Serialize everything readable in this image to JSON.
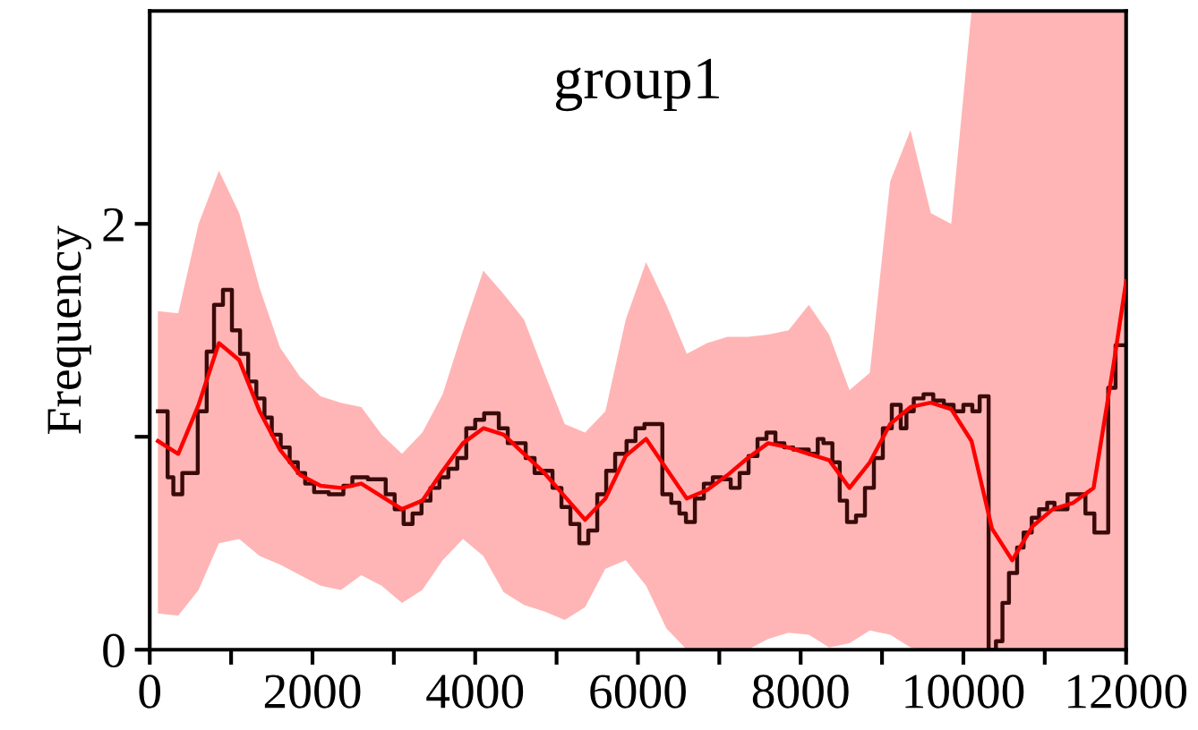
{
  "chart_data": {
    "type": "line",
    "title": "group1",
    "ylabel": "Frequency",
    "xlim": [
      0,
      12000
    ],
    "ylim": [
      0,
      3
    ],
    "xticks": [
      0,
      {
        "value": 1000,
        "label": null
      },
      2000,
      {
        "value": 3000,
        "label": null
      },
      4000,
      {
        "value": 5000,
        "label": null
      },
      6000,
      {
        "value": 7000,
        "label": null
      },
      8000,
      {
        "value": 9000,
        "label": null
      },
      10000,
      {
        "value": 11000,
        "label": null
      },
      12000
    ],
    "yticks": [
      0,
      {
        "value": 1,
        "label": null
      },
      2
    ],
    "grid": false,
    "legend": false,
    "series": [
      {
        "color": "#ff0000",
        "x": [
          100,
          350,
          600,
          850,
          1100,
          1350,
          1600,
          1850,
          2100,
          2350,
          2600,
          2850,
          3100,
          3350,
          3600,
          3850,
          4100,
          4350,
          4600,
          4850,
          5100,
          5350,
          5600,
          5850,
          6100,
          6350,
          6600,
          6850,
          7100,
          7350,
          7600,
          7850,
          8100,
          8350,
          8600,
          8850,
          9100,
          9350,
          9600,
          9850,
          10100,
          10350,
          10600,
          10850,
          11100,
          11350,
          11600,
          11850,
          12000
        ],
        "values": [
          0.98,
          0.92,
          1.15,
          1.44,
          1.36,
          1.12,
          0.94,
          0.82,
          0.77,
          0.76,
          0.78,
          0.72,
          0.66,
          0.7,
          0.84,
          0.97,
          1.04,
          1.01,
          0.92,
          0.83,
          0.72,
          0.61,
          0.71,
          0.91,
          0.99,
          0.85,
          0.71,
          0.75,
          0.82,
          0.9,
          0.97,
          0.95,
          0.92,
          0.89,
          0.76,
          0.88,
          1.06,
          1.14,
          1.16,
          1.13,
          0.98,
          0.57,
          0.42,
          0.58,
          0.66,
          0.69,
          0.76,
          1.35,
          1.73
        ],
        "upper": [
          1.59,
          1.58,
          2.0,
          2.25,
          2.05,
          1.7,
          1.42,
          1.28,
          1.19,
          1.16,
          1.14,
          1.01,
          0.92,
          1.02,
          1.2,
          1.5,
          1.78,
          1.67,
          1.55,
          1.3,
          1.06,
          1.02,
          1.12,
          1.55,
          1.82,
          1.62,
          1.39,
          1.44,
          1.47,
          1.47,
          1.48,
          1.5,
          1.62,
          1.48,
          1.22,
          1.3,
          2.2,
          2.44,
          2.05,
          2.0,
          3,
          3,
          3,
          3,
          3,
          3,
          3,
          3,
          3
        ],
        "lower": [
          0.17,
          0.16,
          0.28,
          0.5,
          0.52,
          0.44,
          0.4,
          0.35,
          0.3,
          0.28,
          0.35,
          0.3,
          0.22,
          0.28,
          0.42,
          0.52,
          0.44,
          0.27,
          0.21,
          0.18,
          0.14,
          0.2,
          0.38,
          0.42,
          0.3,
          0.1,
          0,
          0,
          0,
          0,
          0.05,
          0.08,
          0.07,
          0.01,
          0.03,
          0.09,
          0.07,
          0.01,
          0,
          0,
          0,
          0,
          0,
          0,
          0,
          0,
          0,
          0,
          0
        ]
      },
      {
        "type": "step",
        "color": "#3a0a0a",
        "x": [
          100,
          220,
          290,
          400,
          590,
          700,
          790,
          900,
          1010,
          1110,
          1210,
          1310,
          1410,
          1500,
          1610,
          1720,
          1820,
          1910,
          2020,
          2200,
          2380,
          2490,
          2680,
          2900,
          3010,
          3120,
          3230,
          3340,
          3450,
          3560,
          3670,
          3780,
          3890,
          4000,
          4110,
          4290,
          4400,
          4620,
          4730,
          4840,
          4950,
          5060,
          5170,
          5280,
          5390,
          5500,
          5610,
          5720,
          5860,
          5970,
          6080,
          6300,
          6410,
          6510,
          6590,
          6700,
          6810,
          6920,
          7030,
          7140,
          7250,
          7360,
          7470,
          7580,
          7690,
          7800,
          7910,
          8100,
          8210,
          8280,
          8390,
          8480,
          8570,
          8680,
          8790,
          8900,
          9010,
          9120,
          9230,
          9300,
          9390,
          9510,
          9630,
          9760,
          9880,
          10000,
          10110,
          10200,
          10310,
          10400,
          10480,
          10560,
          10660,
          10740,
          10840,
          10930,
          11030,
          11120,
          11280,
          11500,
          11610,
          11780,
          11870,
          12000
        ],
        "values": [
          1.12,
          0.81,
          0.73,
          0.83,
          1.12,
          1.4,
          1.62,
          1.69,
          1.5,
          1.39,
          1.26,
          1.18,
          1.09,
          1.01,
          0.95,
          0.88,
          0.83,
          0.78,
          0.74,
          0.73,
          0.77,
          0.81,
          0.8,
          0.73,
          0.66,
          0.59,
          0.64,
          0.7,
          0.76,
          0.81,
          0.85,
          0.9,
          1.04,
          1.08,
          1.11,
          1.04,
          0.97,
          0.9,
          0.83,
          0.84,
          0.76,
          0.67,
          0.59,
          0.5,
          0.56,
          0.73,
          0.84,
          0.92,
          0.98,
          1.04,
          1.06,
          0.73,
          0.69,
          0.64,
          0.6,
          0.71,
          0.78,
          0.81,
          0.8,
          0.76,
          0.83,
          0.91,
          0.99,
          1.02,
          0.97,
          0.95,
          0.94,
          0.92,
          0.99,
          0.97,
          0.88,
          0.7,
          0.6,
          0.63,
          0.76,
          0.9,
          1.04,
          1.15,
          1.04,
          1.12,
          1.18,
          1.2,
          1.17,
          1.15,
          1.12,
          1.15,
          1.12,
          1.19,
          0.0,
          0.04,
          0.22,
          0.36,
          0.48,
          0.55,
          0.62,
          0.66,
          0.69,
          0.66,
          0.73,
          0.64,
          0.55,
          1.23,
          1.43,
          1.43
        ]
      }
    ]
  }
}
